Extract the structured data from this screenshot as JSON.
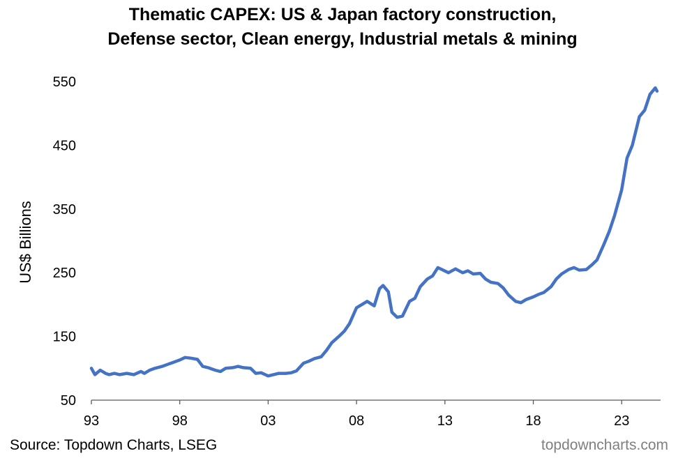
{
  "chart_data": {
    "type": "line",
    "title_line1": "Thematic CAPEX: US & Japan factory construction,",
    "title_line2": "Defense sector, Clean energy, Industrial metals & mining",
    "ylabel": "US$ Billions",
    "ylim": [
      50,
      550
    ],
    "yticks": [
      50,
      150,
      250,
      350,
      450,
      550
    ],
    "xlim": [
      1993,
      2025.2
    ],
    "xticks": [
      {
        "value": 1993,
        "label": "93"
      },
      {
        "value": 1998,
        "label": "98"
      },
      {
        "value": 2003,
        "label": "03"
      },
      {
        "value": 2008,
        "label": "08"
      },
      {
        "value": 2013,
        "label": "13"
      },
      {
        "value": 2018,
        "label": "18"
      },
      {
        "value": 2023,
        "label": "23"
      }
    ],
    "grid": false,
    "legend": "none",
    "series": [
      {
        "color": "#4472c4",
        "x": [
          1993.0,
          1993.2,
          1993.5,
          1993.8,
          1994.0,
          1994.3,
          1994.6,
          1995.0,
          1995.4,
          1995.8,
          1996.0,
          1996.3,
          1996.6,
          1997.0,
          1997.3,
          1997.6,
          1998.0,
          1998.3,
          1998.6,
          1999.0,
          1999.3,
          1999.6,
          2000.0,
          2000.3,
          2000.6,
          2001.0,
          2001.3,
          2001.6,
          2002.0,
          2002.3,
          2002.6,
          2003.0,
          2003.3,
          2003.6,
          2004.0,
          2004.3,
          2004.6,
          2005.0,
          2005.3,
          2005.6,
          2006.0,
          2006.3,
          2006.6,
          2007.0,
          2007.3,
          2007.6,
          2008.0,
          2008.3,
          2008.6,
          2009.0,
          2009.3,
          2009.5,
          2009.8,
          2010.0,
          2010.3,
          2010.6,
          2011.0,
          2011.3,
          2011.6,
          2012.0,
          2012.3,
          2012.6,
          2012.9,
          2013.2,
          2013.6,
          2014.0,
          2014.3,
          2014.6,
          2015.0,
          2015.3,
          2015.6,
          2016.0,
          2016.3,
          2016.6,
          2017.0,
          2017.3,
          2017.6,
          2018.0,
          2018.3,
          2018.6,
          2019.0,
          2019.3,
          2019.6,
          2020.0,
          2020.3,
          2020.6,
          2021.0,
          2021.3,
          2021.6,
          2022.0,
          2022.3,
          2022.6,
          2023.0,
          2023.3,
          2023.6,
          2024.0,
          2024.3,
          2024.6,
          2024.9,
          2025.0
        ],
        "y": [
          100,
          90,
          97,
          92,
          90,
          92,
          90,
          92,
          90,
          95,
          92,
          97,
          100,
          103,
          106,
          109,
          113,
          117,
          116,
          114,
          103,
          101,
          97,
          95,
          100,
          101,
          103,
          101,
          100,
          92,
          93,
          88,
          90,
          92,
          92,
          93,
          96,
          108,
          111,
          115,
          118,
          128,
          140,
          150,
          158,
          170,
          195,
          200,
          205,
          198,
          225,
          230,
          220,
          188,
          180,
          182,
          205,
          210,
          228,
          240,
          245,
          258,
          254,
          250,
          256,
          250,
          253,
          248,
          249,
          240,
          235,
          233,
          226,
          215,
          205,
          203,
          208,
          212,
          216,
          219,
          228,
          240,
          248,
          255,
          258,
          254,
          255,
          262,
          270,
          295,
          315,
          340,
          380,
          430,
          450,
          495,
          505,
          530,
          540,
          535
        ]
      }
    ],
    "source": "Source: Topdown Charts, LSEG",
    "brand": "topdowncharts.com"
  }
}
